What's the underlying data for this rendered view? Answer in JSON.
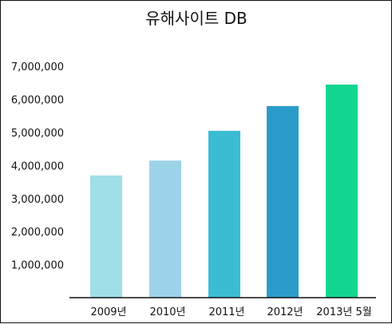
{
  "chart_data": {
    "type": "bar",
    "title": "유해사이트 DB",
    "categories": [
      "2009년",
      "2010년",
      "2011년",
      "2012년",
      "2013년 5월"
    ],
    "values": [
      3700000,
      4150000,
      5050000,
      5800000,
      6450000
    ],
    "colors": [
      "#a0dfe8",
      "#9dd3e8",
      "#3bbcd3",
      "#2b9cca",
      "#12d68f"
    ],
    "ylim": [
      0,
      7500000
    ],
    "yticks": [
      1000000,
      2000000,
      3000000,
      4000000,
      5000000,
      6000000,
      7000000
    ],
    "ytick_labels": [
      "1,000,000",
      "2,000,000",
      "3,000,000",
      "4,000,000",
      "5,000,000",
      "6,000,000",
      "7,000,000"
    ],
    "xlabel": "",
    "ylabel": "",
    "grid": false,
    "legend": "none"
  }
}
